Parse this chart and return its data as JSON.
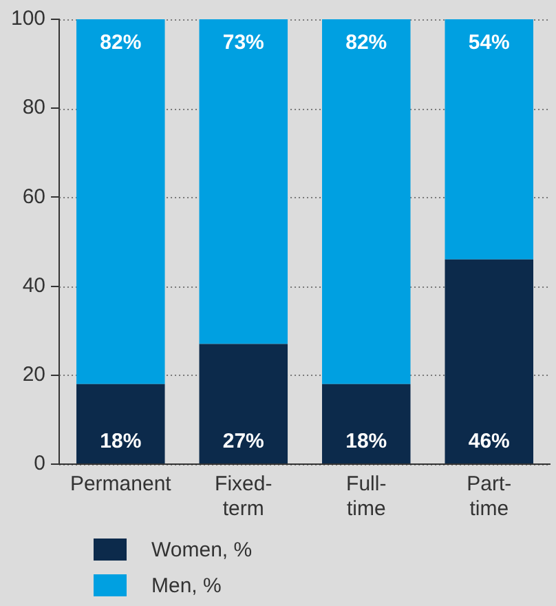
{
  "chart_data": {
    "type": "bar",
    "stacked": true,
    "categories": [
      "Permanent",
      "Fixed-term",
      "Full-time",
      "Part-time"
    ],
    "series": [
      {
        "name": "Women, %",
        "color": "#0c2a4b",
        "values": [
          18,
          27,
          18,
          46
        ],
        "value_labels": [
          "18%",
          "27%",
          "18%",
          "46%"
        ]
      },
      {
        "name": "Men, %",
        "color": "#00a0e1",
        "values": [
          82,
          73,
          82,
          54
        ],
        "value_labels": [
          "82%",
          "73%",
          "82%",
          "54%"
        ]
      }
    ],
    "ylim": [
      0,
      100
    ],
    "yticks": [
      0,
      20,
      40,
      60,
      80,
      100
    ],
    "grid": "y",
    "legend": "bottom left"
  }
}
